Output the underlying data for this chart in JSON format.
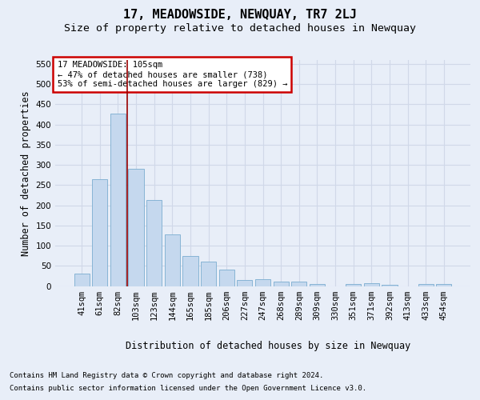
{
  "title": "17, MEADOWSIDE, NEWQUAY, TR7 2LJ",
  "subtitle": "Size of property relative to detached houses in Newquay",
  "xlabel": "Distribution of detached houses by size in Newquay",
  "ylabel": "Number of detached properties",
  "footnote1": "Contains HM Land Registry data © Crown copyright and database right 2024.",
  "footnote2": "Contains public sector information licensed under the Open Government Licence v3.0.",
  "categories": [
    "41sqm",
    "61sqm",
    "82sqm",
    "103sqm",
    "123sqm",
    "144sqm",
    "165sqm",
    "185sqm",
    "206sqm",
    "227sqm",
    "247sqm",
    "268sqm",
    "289sqm",
    "309sqm",
    "330sqm",
    "351sqm",
    "371sqm",
    "392sqm",
    "413sqm",
    "433sqm",
    "454sqm"
  ],
  "values": [
    30,
    265,
    428,
    290,
    213,
    128,
    75,
    61,
    40,
    14,
    17,
    10,
    10,
    5,
    0,
    5,
    6,
    3,
    0,
    5,
    5
  ],
  "bar_color": "#c5d8ee",
  "bar_edge_color": "#7aadd0",
  "vline_position": 2.5,
  "vline_color": "#990000",
  "annotation_text": "17 MEADOWSIDE: 105sqm\n← 47% of detached houses are smaller (738)\n53% of semi-detached houses are larger (829) →",
  "annotation_box_facecolor": "#ffffff",
  "annotation_box_edgecolor": "#cc0000",
  "ylim_max": 560,
  "yticks": [
    0,
    50,
    100,
    150,
    200,
    250,
    300,
    350,
    400,
    450,
    500,
    550
  ],
  "background_color": "#e8eef8",
  "grid_color": "#d0d8e8",
  "title_fontsize": 11,
  "subtitle_fontsize": 9.5,
  "axis_label_fontsize": 8.5,
  "tick_fontsize": 7.5,
  "annotation_fontsize": 7.5,
  "footnote_fontsize": 6.5
}
